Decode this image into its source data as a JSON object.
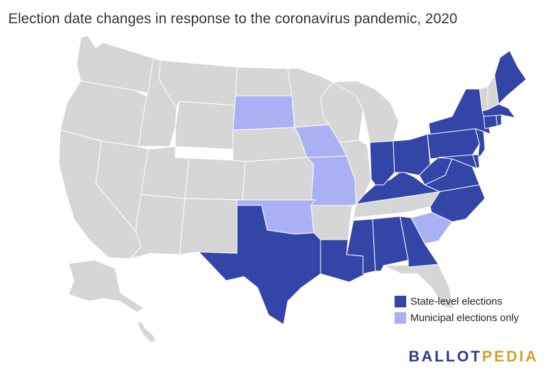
{
  "title": "Election date changes in response to the coronavirus pandemic, 2020",
  "legend": {
    "items": [
      {
        "label": "State-level elections",
        "color": "#3346a8"
      },
      {
        "label": "Municipal elections only",
        "color": "#a9b1f4"
      }
    ]
  },
  "logo": {
    "part1": "BALLOT",
    "part2": "PEDIA"
  },
  "colors": {
    "none": "#d6d6d6",
    "state": "#3346a8",
    "municipal": "#a9b1f4",
    "border": "#ffffff"
  },
  "map_data": {
    "state_level": [
      "Texas",
      "Louisiana",
      "Mississippi",
      "Alabama",
      "Georgia",
      "Kentucky",
      "Indiana",
      "Ohio",
      "West Virginia",
      "Virginia",
      "North Carolina",
      "Pennsylvania",
      "Maryland",
      "Delaware",
      "New Jersey",
      "New York",
      "Connecticut",
      "Rhode Island",
      "Massachusetts",
      "Maine"
    ],
    "municipal_only": [
      "South Dakota",
      "Iowa",
      "Missouri",
      "Oklahoma",
      "South Carolina"
    ]
  }
}
